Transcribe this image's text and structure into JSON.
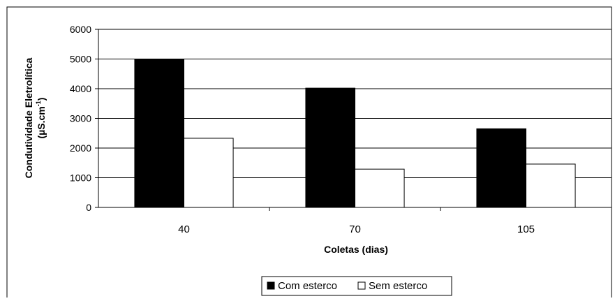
{
  "chart_data": {
    "type": "bar",
    "categories": [
      "40",
      "70",
      "105"
    ],
    "series": [
      {
        "name": "Com esterco",
        "values": [
          5000,
          4020,
          2650
        ],
        "color": "#000000"
      },
      {
        "name": "Sem esterco",
        "values": [
          2330,
          1290,
          1460
        ],
        "color": "#ffffff"
      }
    ],
    "xlabel": "Coletas (dias)",
    "ylabel": "Condutividade Eletrolítica",
    "ylabel_unit_prefix": "(µS.cm",
    "ylabel_unit_exponent": "-1",
    "ylabel_unit_suffix": ")",
    "ylim": [
      0,
      6000
    ],
    "yticks": [
      0,
      1000,
      2000,
      3000,
      4000,
      5000,
      6000
    ],
    "grid": true,
    "legend_position": "bottom-center"
  }
}
